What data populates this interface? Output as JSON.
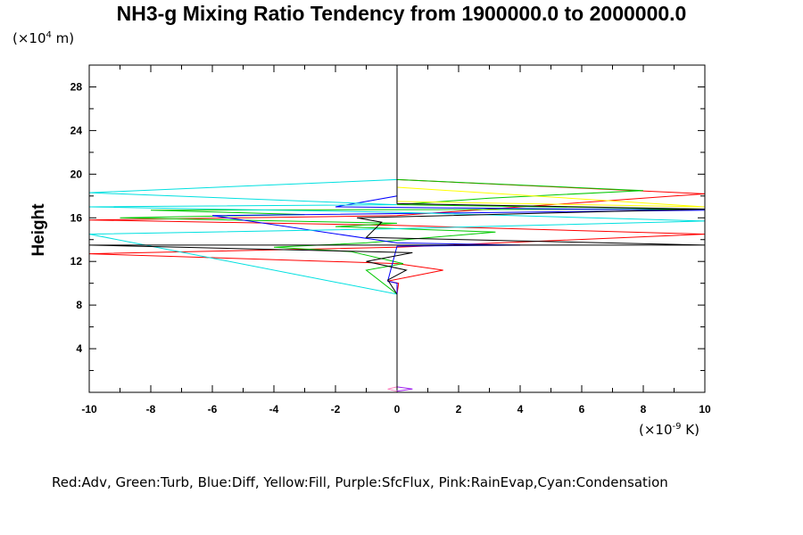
{
  "title": "NH3-g Mixing Ratio Tendency from 1900000.0 to 2000000.0",
  "y_axis": {
    "label": "Height",
    "unit_prefix": "(×10",
    "unit_exp": "4",
    "unit_suffix": " m)"
  },
  "x_axis": {
    "unit_prefix": "(×10",
    "unit_exp": "-9",
    "unit_suffix": " K)"
  },
  "legend_text": "Red:Adv, Green:Turb, Blue:Diff, Yellow:Fill, Purple:SfcFlux, Pink:RainEvap,Cyan:Condensation",
  "colors": {
    "adv": "#ff0000",
    "turb": "#00c800",
    "diff": "#0000ff",
    "fill": "#ffff00",
    "sfcflux": "#a020f0",
    "rainevap": "#ff80c0",
    "condensation": "#00e0e0",
    "total": "#000000"
  },
  "chart_data": {
    "type": "line",
    "title": "NH3-g Mixing Ratio Tendency from 1900000.0 to 2000000.0",
    "xlabel": "(×10^-9 K)",
    "ylabel": "Height (×10^4 m)",
    "xlim": [
      -10,
      10
    ],
    "ylim": [
      0,
      30
    ],
    "xticks": [
      -10,
      -8,
      -6,
      -4,
      -2,
      0,
      2,
      4,
      6,
      8,
      10
    ],
    "yticks": [
      4,
      8,
      12,
      16,
      20,
      24,
      28
    ],
    "grid": false,
    "legend_placement": "bottom",
    "series": [
      {
        "name": "Adv",
        "color": "#ff0000",
        "points": [
          [
            0,
            0.2
          ],
          [
            0,
            9
          ],
          [
            0.05,
            10
          ],
          [
            -0.3,
            10.2
          ],
          [
            1.5,
            11.2
          ],
          [
            0,
            11.8
          ],
          [
            -10,
            12.7
          ],
          [
            0,
            13.3
          ],
          [
            10,
            14.5
          ],
          [
            0,
            15.3
          ],
          [
            -10,
            15.8
          ],
          [
            0,
            16.2
          ],
          [
            10,
            18.2
          ],
          [
            0,
            19.5
          ],
          [
            0,
            29.8
          ]
        ]
      },
      {
        "name": "Turb",
        "color": "#00c800",
        "points": [
          [
            0,
            0.2
          ],
          [
            0,
            9
          ],
          [
            -1,
            11.2
          ],
          [
            0.2,
            11.8
          ],
          [
            -1.5,
            12.9
          ],
          [
            -4,
            13.3
          ],
          [
            -1,
            13.7
          ],
          [
            3.2,
            14.7
          ],
          [
            -2,
            15.2
          ],
          [
            0,
            15.5
          ],
          [
            -9,
            16
          ],
          [
            -3,
            16.3
          ],
          [
            -8,
            16.7
          ],
          [
            10,
            16.8
          ],
          [
            0,
            17.2
          ],
          [
            3,
            17.8
          ],
          [
            8,
            18.5
          ],
          [
            0,
            19.5
          ],
          [
            0,
            29.8
          ]
        ]
      },
      {
        "name": "Diff",
        "color": "#0000ff",
        "points": [
          [
            0,
            0.2
          ],
          [
            0,
            9
          ],
          [
            0,
            10
          ],
          [
            -0.3,
            10.2
          ],
          [
            0,
            13.4
          ],
          [
            4,
            13.5
          ],
          [
            0,
            13.7
          ],
          [
            -6,
            16.2
          ],
          [
            10,
            16.7
          ],
          [
            -2,
            17
          ],
          [
            0,
            18
          ],
          [
            0,
            29.8
          ]
        ]
      },
      {
        "name": "Fill",
        "color": "#ffff00",
        "points": [
          [
            0,
            17.5
          ],
          [
            10,
            17
          ],
          [
            0,
            18.8
          ],
          [
            0,
            19.5
          ]
        ]
      },
      {
        "name": "SfcFlux",
        "color": "#a020f0",
        "points": [
          [
            0,
            0.1
          ],
          [
            0.5,
            0.3
          ],
          [
            0,
            0.5
          ]
        ]
      },
      {
        "name": "RainEvap",
        "color": "#ff80c0",
        "points": [
          [
            0,
            0.1
          ],
          [
            -0.3,
            0.3
          ],
          [
            0,
            0.5
          ]
        ]
      },
      {
        "name": "Condensation",
        "color": "#00e0e0",
        "points": [
          [
            0,
            0.2
          ],
          [
            0,
            9
          ],
          [
            -10,
            14.5
          ],
          [
            0,
            15
          ],
          [
            10,
            15.7
          ],
          [
            0,
            16.5
          ],
          [
            -10,
            17
          ],
          [
            0,
            17.2
          ],
          [
            -10,
            18.3
          ],
          [
            0,
            19.5
          ],
          [
            0,
            29.8
          ]
        ]
      },
      {
        "name": "Total",
        "color": "#000000",
        "points": [
          [
            0,
            0.2
          ],
          [
            0,
            9
          ],
          [
            -0.3,
            10.3
          ],
          [
            0.3,
            11.2
          ],
          [
            -1,
            12
          ],
          [
            0.5,
            12.8
          ],
          [
            -10,
            13.5
          ],
          [
            10,
            13.5
          ],
          [
            -1,
            14.2
          ],
          [
            -0.5,
            15.6
          ],
          [
            -1.3,
            16
          ],
          [
            10,
            16.8
          ],
          [
            0,
            17.3
          ],
          [
            0,
            18
          ],
          [
            0,
            19.5
          ],
          [
            0,
            29.8
          ]
        ]
      }
    ]
  }
}
